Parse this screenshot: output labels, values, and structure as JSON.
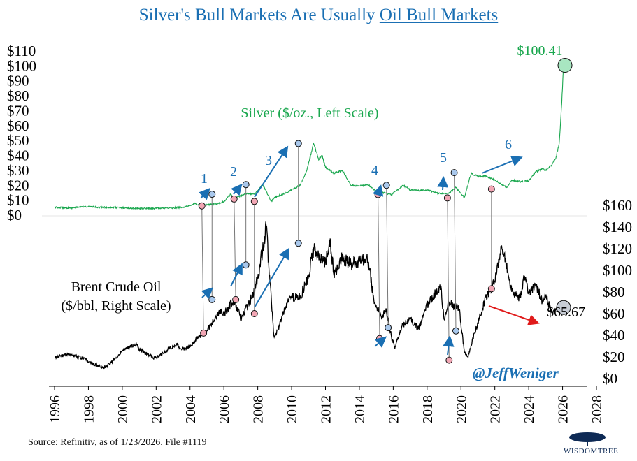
{
  "title": {
    "prefix": "Silver's Bull Markets Are Usually ",
    "underlined": "Oil Bull Markets"
  },
  "colors": {
    "silver": "#1aa74e",
    "oil": "#000000",
    "arrow": "#1a6fb3",
    "down_arrow": "#e01b1b",
    "marker_low": "#f2a6b4",
    "marker_high": "#a9c8ec"
  },
  "silver_label": "Silver ($/oz., Left Scale)",
  "oil_label_line1": "Brent Crude Oil",
  "oil_label_line2": "($/bbl, Right Scale)",
  "silver_last_label": "$100.41",
  "oil_last_label": "$65.67",
  "handle": "@JeffWeniger",
  "source": "Source: Refinitiv, as of 1/23/2026. File #1119",
  "brand": "WisdomTree",
  "cycle_labels": [
    "1",
    "2",
    "3",
    "4",
    "5",
    "6"
  ],
  "chart_data": {
    "type": "line",
    "x_ticks": [
      "1996",
      "1998",
      "2000",
      "2002",
      "2004",
      "2006",
      "2008",
      "2010",
      "2012",
      "2014",
      "2016",
      "2018",
      "2020",
      "2022",
      "2024",
      "2026",
      "2028"
    ],
    "left_axis": {
      "label": "Silver",
      "ticks": [
        "$0",
        "$10",
        "$20",
        "$30",
        "$40",
        "$50",
        "$60",
        "$70",
        "$80",
        "$90",
        "$100",
        "$110"
      ],
      "ylim": [
        0,
        110
      ]
    },
    "right_axis": {
      "label": "Brent Crude Oil",
      "ticks": [
        "$0",
        "$20",
        "$40",
        "$60",
        "$80",
        "$100",
        "$120",
        "$140",
        "$160"
      ],
      "ylim": [
        0,
        160
      ]
    },
    "series": [
      {
        "name": "Silver ($/oz., Left Scale)",
        "axis": "left",
        "points": [
          [
            1996,
            5.2
          ],
          [
            1997,
            4.8
          ],
          [
            1997.4,
            5.3
          ],
          [
            1998,
            5.8
          ],
          [
            1998.5,
            5.3
          ],
          [
            1999,
            5.2
          ],
          [
            2000,
            5.0
          ],
          [
            2001,
            4.4
          ],
          [
            2002,
            4.6
          ],
          [
            2003,
            4.9
          ],
          [
            2003.5,
            5.2
          ],
          [
            2004,
            6.3
          ],
          [
            2004.3,
            7.8
          ],
          [
            2004.7,
            6.2
          ],
          [
            2005,
            7.0
          ],
          [
            2005.5,
            7.4
          ],
          [
            2006,
            9.0
          ],
          [
            2006.4,
            14.0
          ],
          [
            2006.6,
            10.8
          ],
          [
            2007,
            13.0
          ],
          [
            2007.3,
            14.5
          ],
          [
            2007.8,
            14.0
          ],
          [
            2008,
            16.5
          ],
          [
            2008.3,
            20.5
          ],
          [
            2008.8,
            9.2
          ],
          [
            2009,
            12.0
          ],
          [
            2009.5,
            14.0
          ],
          [
            2010,
            17.0
          ],
          [
            2010.5,
            20.0
          ],
          [
            2010.9,
            30.0
          ],
          [
            2011.3,
            48.0
          ],
          [
            2011.6,
            37.0
          ],
          [
            2011.8,
            40.0
          ],
          [
            2012,
            32.0
          ],
          [
            2012.5,
            28.0
          ],
          [
            2013,
            30.0
          ],
          [
            2013.5,
            20.0
          ],
          [
            2014,
            19.5
          ],
          [
            2014.5,
            20.5
          ],
          [
            2015,
            16.0
          ],
          [
            2015.9,
            13.8
          ],
          [
            2016.6,
            20.0
          ],
          [
            2017,
            17.0
          ],
          [
            2017.5,
            16.5
          ],
          [
            2018,
            16.8
          ],
          [
            2018.8,
            14.2
          ],
          [
            2019.3,
            15.0
          ],
          [
            2019.7,
            18.5
          ],
          [
            2020.2,
            12.0
          ],
          [
            2020.6,
            28.0
          ],
          [
            2021,
            26.0
          ],
          [
            2021.5,
            26.0
          ],
          [
            2022,
            23.5
          ],
          [
            2022.7,
            18.5
          ],
          [
            2023,
            23.5
          ],
          [
            2023.5,
            22.5
          ],
          [
            2024,
            23.0
          ],
          [
            2024.4,
            29.0
          ],
          [
            2024.8,
            31.0
          ],
          [
            2025,
            30.0
          ],
          [
            2025.3,
            33.0
          ],
          [
            2025.6,
            38.0
          ],
          [
            2025.8,
            48.0
          ],
          [
            2025.95,
            75.0
          ],
          [
            2026.06,
            100.41
          ]
        ]
      },
      {
        "name": "Brent Crude Oil ($/bbl, Right Scale)",
        "axis": "right",
        "points": [
          [
            1996,
            19
          ],
          [
            1996.8,
            23
          ],
          [
            1997,
            22
          ],
          [
            1997.8,
            18
          ],
          [
            1998,
            15
          ],
          [
            1998.9,
            10
          ],
          [
            1999.3,
            14
          ],
          [
            1999.8,
            22
          ],
          [
            2000,
            26
          ],
          [
            2000.8,
            32
          ],
          [
            2001,
            27
          ],
          [
            2001.9,
            19
          ],
          [
            2002.2,
            21
          ],
          [
            2002.8,
            28
          ],
          [
            2003.2,
            32
          ],
          [
            2003.5,
            27
          ],
          [
            2004,
            30
          ],
          [
            2004.4,
            37
          ],
          [
            2004.8,
            42
          ],
          [
            2005,
            44
          ],
          [
            2005.7,
            62
          ],
          [
            2006,
            60
          ],
          [
            2006.6,
            73
          ],
          [
            2007,
            55
          ],
          [
            2007.5,
            70
          ],
          [
            2007.8,
            82
          ],
          [
            2008,
            92
          ],
          [
            2008.5,
            140
          ],
          [
            2008.95,
            40
          ],
          [
            2009.2,
            45
          ],
          [
            2009.7,
            70
          ],
          [
            2010,
            75
          ],
          [
            2010.5,
            75
          ],
          [
            2011,
            95
          ],
          [
            2011.3,
            120
          ],
          [
            2011.9,
            108
          ],
          [
            2012,
            110
          ],
          [
            2012.3,
            125
          ],
          [
            2012.5,
            95
          ],
          [
            2013,
            112
          ],
          [
            2013.5,
            105
          ],
          [
            2014,
            108
          ],
          [
            2014.5,
            110
          ],
          [
            2014.9,
            70
          ],
          [
            2015.3,
            57
          ],
          [
            2015.6,
            62
          ],
          [
            2015.9,
            38
          ],
          [
            2016.1,
            28
          ],
          [
            2016.5,
            48
          ],
          [
            2017,
            55
          ],
          [
            2017.5,
            46
          ],
          [
            2018,
            68
          ],
          [
            2018.8,
            85
          ],
          [
            2019,
            55
          ],
          [
            2019.3,
            70
          ],
          [
            2019.9,
            64
          ],
          [
            2020.2,
            25
          ],
          [
            2020.4,
            20
          ],
          [
            2020.8,
            42
          ],
          [
            2021,
            52
          ],
          [
            2021.5,
            75
          ],
          [
            2022,
            90
          ],
          [
            2022.4,
            123
          ],
          [
            2022.8,
            95
          ],
          [
            2023,
            80
          ],
          [
            2023.5,
            75
          ],
          [
            2023.75,
            95
          ],
          [
            2024,
            78
          ],
          [
            2024.4,
            88
          ],
          [
            2024.8,
            72
          ],
          [
            2025,
            75
          ],
          [
            2025.4,
            62
          ],
          [
            2025.7,
            68
          ],
          [
            2026.06,
            65.67
          ]
        ]
      }
    ]
  }
}
